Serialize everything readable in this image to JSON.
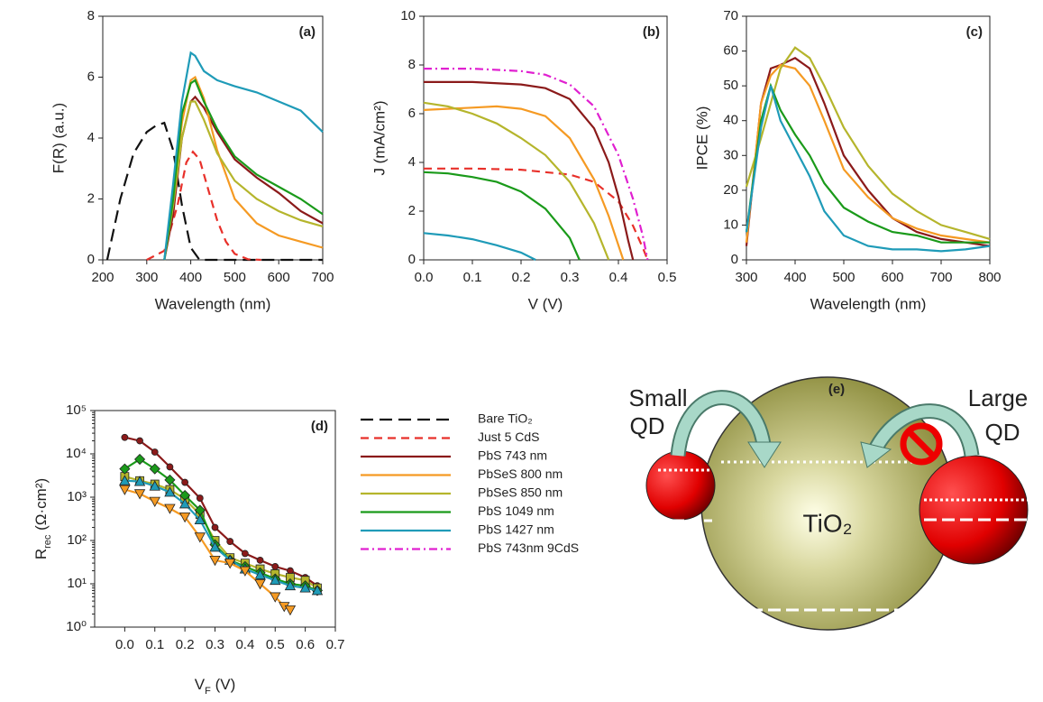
{
  "chart_data": [
    {
      "type": "line",
      "panel_label": "(a)",
      "xlabel": "Wavelength (nm)",
      "ylabel": "F(R) (a.u.)",
      "xlim": [
        200,
        700
      ],
      "xticks": [
        200,
        300,
        400,
        500,
        600,
        700
      ],
      "ylim": [
        0,
        8
      ],
      "yticks": [
        0,
        2,
        4,
        6,
        8
      ],
      "series": [
        {
          "name": "Bare TiO₂",
          "color": "#111111",
          "dash": "long",
          "x": [
            210,
            240,
            270,
            300,
            320,
            340,
            360,
            380,
            400,
            420,
            440,
            700
          ],
          "values": [
            0,
            2.0,
            3.5,
            4.2,
            4.4,
            4.5,
            3.6,
            1.8,
            0.4,
            0,
            0,
            0
          ]
        },
        {
          "name": "Just 5 CdS",
          "color": "#e8302a",
          "dash": "dash",
          "x": [
            300,
            340,
            370,
            390,
            405,
            420,
            440,
            460,
            480,
            500,
            530,
            560
          ],
          "values": [
            0,
            0.3,
            1.8,
            3.2,
            3.55,
            3.3,
            2.3,
            1.3,
            0.6,
            0.2,
            0.02,
            0
          ]
        },
        {
          "name": "PbS 743 nm",
          "color": "#8b1a1a",
          "x": [
            340,
            360,
            380,
            400,
            410,
            430,
            460,
            500,
            550,
            600,
            650,
            700
          ],
          "values": [
            0,
            1.5,
            4.0,
            5.2,
            5.35,
            5.0,
            4.2,
            3.3,
            2.7,
            2.2,
            1.6,
            1.2
          ]
        },
        {
          "name": "PbSeS 800 nm",
          "color": "#f59a23",
          "x": [
            340,
            360,
            380,
            400,
            410,
            430,
            460,
            500,
            550,
            600,
            650,
            700
          ],
          "values": [
            0,
            2.0,
            4.5,
            5.9,
            6.0,
            5.3,
            3.6,
            2.0,
            1.2,
            0.8,
            0.6,
            0.4
          ]
        },
        {
          "name": "PbSeS 850 nm",
          "color": "#b5b52c",
          "x": [
            340,
            360,
            380,
            400,
            410,
            430,
            460,
            500,
            550,
            600,
            650,
            700
          ],
          "values": [
            0,
            1.8,
            4.0,
            5.2,
            5.2,
            4.6,
            3.5,
            2.6,
            2.0,
            1.6,
            1.3,
            1.1
          ]
        },
        {
          "name": "PbS 1049 nm",
          "color": "#1a9a1a",
          "x": [
            340,
            360,
            380,
            400,
            410,
            430,
            460,
            500,
            550,
            600,
            650,
            700
          ],
          "values": [
            0,
            2.0,
            4.8,
            5.8,
            5.9,
            5.2,
            4.3,
            3.4,
            2.8,
            2.4,
            2.0,
            1.5
          ]
        },
        {
          "name": "PbS 1427 nm",
          "color": "#1f9bb8",
          "x": [
            340,
            360,
            380,
            400,
            410,
            430,
            460,
            500,
            550,
            600,
            650,
            700
          ],
          "values": [
            0,
            2.5,
            5.2,
            6.8,
            6.7,
            6.2,
            5.9,
            5.7,
            5.5,
            5.2,
            4.9,
            4.2
          ]
        }
      ]
    },
    {
      "type": "line",
      "panel_label": "(b)",
      "xlabel": "V (V)",
      "ylabel": "J (mA/cm²)",
      "xlim": [
        0,
        0.5
      ],
      "xticks": [
        {
          "value": 0,
          "label": "0.0"
        },
        0.1,
        0.2,
        0.3,
        0.4,
        0.5
      ],
      "ylim": [
        0,
        10
      ],
      "yticks": [
        0,
        2,
        4,
        6,
        8,
        10
      ],
      "series": [
        {
          "color": "#e8302a",
          "dash": "dash",
          "x": [
            0,
            0.1,
            0.2,
            0.3,
            0.35,
            0.4,
            0.43,
            0.45,
            0.46
          ],
          "values": [
            3.75,
            3.75,
            3.7,
            3.5,
            3.2,
            2.4,
            1.4,
            0.5,
            0
          ]
        },
        {
          "color": "#8b1a1a",
          "x": [
            0,
            0.1,
            0.2,
            0.25,
            0.3,
            0.35,
            0.38,
            0.4,
            0.42,
            0.43
          ],
          "values": [
            7.3,
            7.3,
            7.2,
            7.05,
            6.6,
            5.4,
            4.0,
            2.6,
            0.8,
            0
          ]
        },
        {
          "color": "#f59a23",
          "x": [
            0,
            0.1,
            0.15,
            0.2,
            0.25,
            0.3,
            0.35,
            0.38,
            0.41
          ],
          "values": [
            6.15,
            6.25,
            6.3,
            6.2,
            5.9,
            5.0,
            3.3,
            1.8,
            0
          ]
        },
        {
          "color": "#b5b52c",
          "x": [
            0,
            0.05,
            0.1,
            0.15,
            0.2,
            0.25,
            0.3,
            0.35,
            0.38
          ],
          "values": [
            6.45,
            6.3,
            6.0,
            5.6,
            5.0,
            4.3,
            3.2,
            1.5,
            0
          ]
        },
        {
          "color": "#1a9a1a",
          "x": [
            0,
            0.05,
            0.1,
            0.15,
            0.2,
            0.25,
            0.3,
            0.32
          ],
          "values": [
            3.6,
            3.55,
            3.4,
            3.2,
            2.8,
            2.1,
            0.9,
            0
          ]
        },
        {
          "color": "#1f9bb8",
          "x": [
            0,
            0.05,
            0.1,
            0.15,
            0.2,
            0.23
          ],
          "values": [
            1.1,
            1.0,
            0.85,
            0.6,
            0.3,
            0
          ]
        },
        {
          "name": "PbS 743nm 9CdS",
          "color": "#e020d0",
          "dash": "dashdot",
          "x": [
            0,
            0.1,
            0.2,
            0.25,
            0.3,
            0.35,
            0.4,
            0.43,
            0.45,
            0.46
          ],
          "values": [
            7.85,
            7.85,
            7.75,
            7.6,
            7.2,
            6.3,
            4.3,
            2.5,
            1.0,
            0
          ]
        }
      ]
    },
    {
      "type": "line",
      "panel_label": "(c)",
      "xlabel": "Wavelength (nm)",
      "ylabel": "IPCE (%)",
      "xlim": [
        300,
        800
      ],
      "xticks": [
        300,
        400,
        500,
        600,
        700,
        800
      ],
      "ylim": [
        0,
        70
      ],
      "yticks": [
        0,
        10,
        20,
        30,
        40,
        50,
        60,
        70
      ],
      "x": [
        300,
        330,
        350,
        370,
        400,
        430,
        460,
        500,
        550,
        600,
        650,
        700,
        750,
        800
      ],
      "series": [
        {
          "color": "#8b1a1a",
          "values": [
            4,
            45,
            55,
            56,
            58,
            55,
            45,
            30,
            20,
            12,
            8,
            6,
            5,
            4
          ]
        },
        {
          "color": "#f59a23",
          "values": [
            5,
            45,
            53,
            56,
            55,
            50,
            40,
            26,
            18,
            12,
            9,
            7,
            6,
            5
          ]
        },
        {
          "color": "#b5b52c",
          "values": [
            21,
            35,
            45,
            55,
            61,
            58,
            50,
            38,
            27,
            19,
            14,
            10,
            8,
            6
          ]
        },
        {
          "color": "#1a9a1a",
          "values": [
            8,
            40,
            50,
            43,
            36,
            30,
            22,
            15,
            11,
            8,
            7,
            5,
            5,
            5
          ]
        },
        {
          "color": "#1f9bb8",
          "values": [
            8,
            38,
            50,
            40,
            32,
            24,
            14,
            7,
            4,
            3,
            3,
            2.5,
            3,
            4
          ]
        }
      ]
    },
    {
      "type": "line",
      "panel_label": "(d)",
      "log_y": true,
      "xlabel_parts": [
        {
          "text": "V"
        },
        {
          "text": "F",
          "sub": true
        },
        {
          "text": " (V)"
        }
      ],
      "ylabel_parts": [
        {
          "text": "R"
        },
        {
          "text": "rec",
          "sub": true
        },
        {
          "text": " (Ω·cm²)"
        }
      ],
      "xlim": [
        -0.1,
        0.7
      ],
      "xticks": [
        {
          "value": 0,
          "label": "0.0"
        },
        0.1,
        0.2,
        0.3,
        0.4,
        0.5,
        0.6,
        0.7
      ],
      "ylim": [
        1,
        100000
      ],
      "yticks": [
        {
          "value": 1,
          "label": "10⁰"
        },
        {
          "value": 10,
          "label": "10¹"
        },
        {
          "value": 100,
          "label": "10²"
        },
        {
          "value": 1000,
          "label": "10³"
        },
        {
          "value": 10000,
          "label": "10⁴"
        },
        {
          "value": 100000,
          "label": "10⁵"
        }
      ],
      "series": [
        {
          "color": "#8b1a1a",
          "marker": "circle",
          "x": [
            0,
            0.05,
            0.1,
            0.15,
            0.2,
            0.25,
            0.3,
            0.35,
            0.4,
            0.45,
            0.5,
            0.55,
            0.6,
            0.64
          ],
          "values": [
            24000,
            20000,
            11000,
            5000,
            2200,
            950,
            200,
            95,
            50,
            35,
            25,
            20,
            14,
            9
          ]
        },
        {
          "color": "#b5b52c",
          "marker": "square",
          "x": [
            0,
            0.05,
            0.1,
            0.15,
            0.2,
            0.25,
            0.3,
            0.35,
            0.4,
            0.45,
            0.5,
            0.55,
            0.6,
            0.64
          ],
          "values": [
            3000,
            2400,
            2000,
            1500,
            900,
            400,
            100,
            40,
            30,
            22,
            17,
            14,
            12,
            8
          ]
        },
        {
          "color": "#1a9a1a",
          "marker": "diamond",
          "x": [
            0,
            0.05,
            0.1,
            0.15,
            0.2,
            0.25,
            0.3,
            0.35,
            0.4,
            0.45,
            0.5,
            0.55,
            0.6,
            0.64
          ],
          "values": [
            4500,
            7500,
            4500,
            2500,
            1100,
            500,
            80,
            35,
            25,
            18,
            13,
            10,
            9,
            7
          ]
        },
        {
          "color": "#1f9bb8",
          "marker": "triangle-up",
          "x": [
            0,
            0.05,
            0.1,
            0.15,
            0.2,
            0.25,
            0.3,
            0.35,
            0.4,
            0.45,
            0.5,
            0.55,
            0.6,
            0.64
          ],
          "values": [
            2400,
            2300,
            1800,
            1300,
            700,
            300,
            70,
            35,
            22,
            16,
            12,
            9,
            8,
            7
          ]
        },
        {
          "color": "#f59a23",
          "marker": "triangle-down",
          "x": [
            0,
            0.05,
            0.1,
            0.15,
            0.2,
            0.25,
            0.3,
            0.35,
            0.4,
            0.45,
            0.5,
            0.53,
            0.55
          ],
          "values": [
            1500,
            1200,
            800,
            550,
            350,
            120,
            35,
            30,
            20,
            10,
            5,
            3,
            2.5
          ]
        }
      ]
    }
  ],
  "diagram": {
    "label": "(e)",
    "small": [
      "Small",
      "QD"
    ],
    "large": [
      "Large",
      "QD"
    ],
    "center": "TiO₂"
  }
}
